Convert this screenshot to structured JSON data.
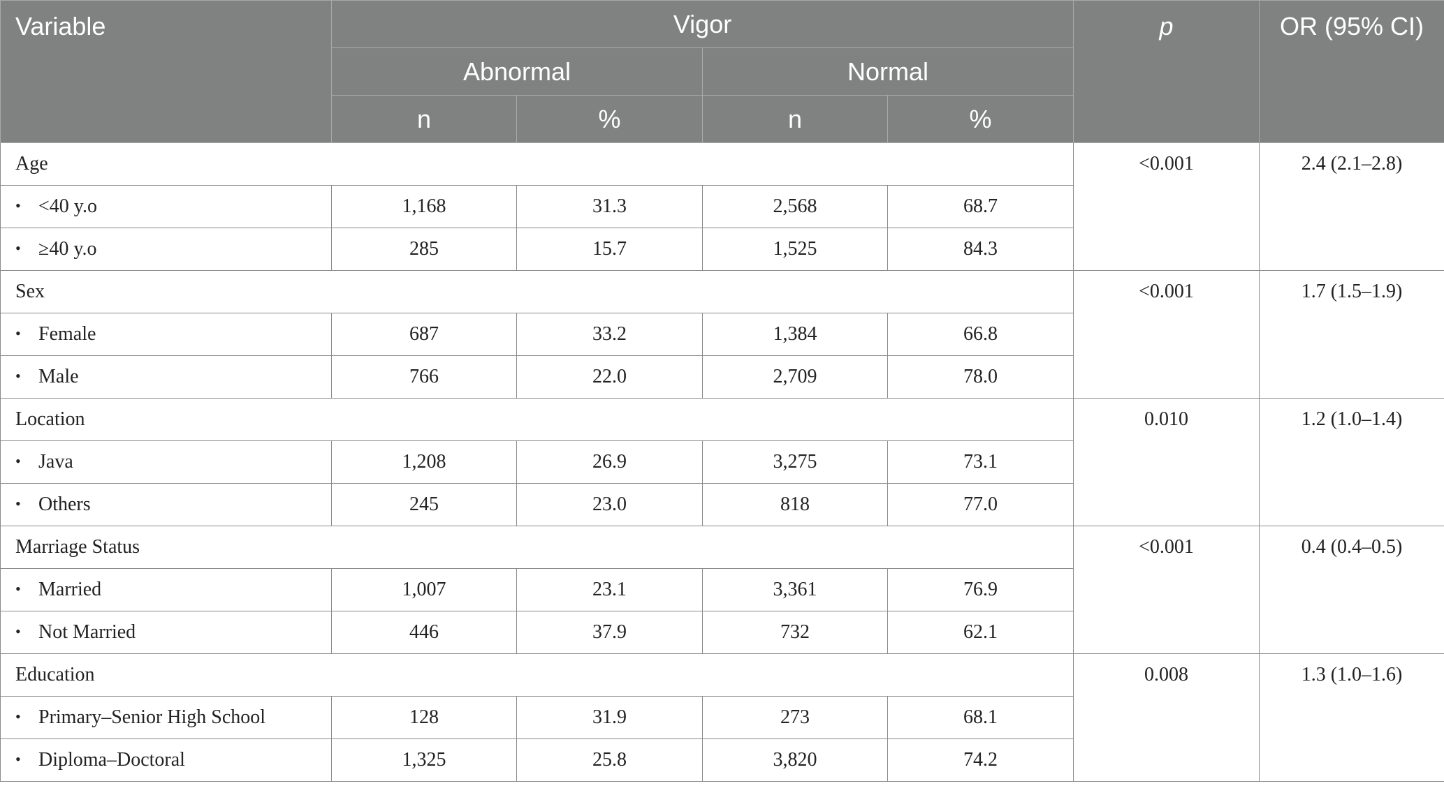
{
  "header": {
    "variable": "Variable",
    "vigor": "Vigor",
    "abnormal": "Abnormal",
    "normal": "Normal",
    "n": "n",
    "pct": "%",
    "p": "p",
    "or": "OR (95% CI)"
  },
  "bullet": "•",
  "groups": [
    {
      "label": "Age",
      "p": "<0.001",
      "or": "2.4 (2.1–2.8)",
      "rows": [
        {
          "label": "<40 y.o",
          "ab_n": "1,168",
          "ab_pct": "31.3",
          "no_n": "2,568",
          "no_pct": "68.7"
        },
        {
          "label": "≥40 y.o",
          "ab_n": "285",
          "ab_pct": "15.7",
          "no_n": "1,525",
          "no_pct": "84.3"
        }
      ]
    },
    {
      "label": "Sex",
      "p": "<0.001",
      "or": "1.7 (1.5–1.9)",
      "rows": [
        {
          "label": "Female",
          "ab_n": "687",
          "ab_pct": "33.2",
          "no_n": "1,384",
          "no_pct": "66.8"
        },
        {
          "label": "Male",
          "ab_n": "766",
          "ab_pct": "22.0",
          "no_n": "2,709",
          "no_pct": "78.0"
        }
      ]
    },
    {
      "label": "Location",
      "p": "0.010",
      "or": "1.2 (1.0–1.4)",
      "rows": [
        {
          "label": "Java",
          "ab_n": "1,208",
          "ab_pct": "26.9",
          "no_n": "3,275",
          "no_pct": "73.1"
        },
        {
          "label": "Others",
          "ab_n": "245",
          "ab_pct": "23.0",
          "no_n": "818",
          "no_pct": "77.0"
        }
      ]
    },
    {
      "label": "Marriage Status",
      "p": "<0.001",
      "or": "0.4 (0.4–0.5)",
      "rows": [
        {
          "label": "Married",
          "ab_n": "1,007",
          "ab_pct": "23.1",
          "no_n": "3,361",
          "no_pct": "76.9"
        },
        {
          "label": "Not Married",
          "ab_n": "446",
          "ab_pct": "37.9",
          "no_n": "732",
          "no_pct": "62.1"
        }
      ]
    },
    {
      "label": "Education",
      "p": "0.008",
      "or": "1.3 (1.0–1.6)",
      "rows": [
        {
          "label": "Primary–Senior High School",
          "ab_n": "128",
          "ab_pct": "31.9",
          "no_n": "273",
          "no_pct": "68.1"
        },
        {
          "label": "Diploma–Doctoral",
          "ab_n": "1,325",
          "ab_pct": "25.8",
          "no_n": "3,820",
          "no_pct": "74.2"
        }
      ]
    }
  ]
}
